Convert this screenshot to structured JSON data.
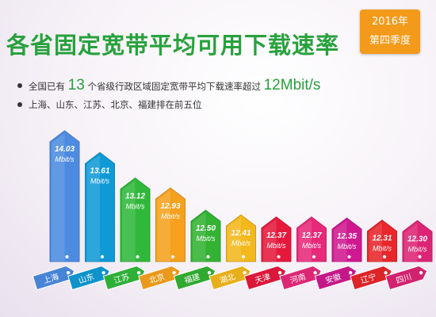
{
  "header": {
    "title": "各省固定宽带平均可用下载速率",
    "badge_line1": "2016年",
    "badge_line2": "第四季度"
  },
  "bullets": {
    "line1_prefix": "全国已有",
    "line1_count": "13",
    "line1_middle": "个省级行政区域固定宽带平均下载速率超过",
    "line1_threshold": "12Mbit/s",
    "line2": "上海、山东、江苏、北京、福建排在前五位"
  },
  "chart_data": {
    "type": "bar",
    "unit": "Mbit/s",
    "categories": [
      "上海",
      "山东",
      "江苏",
      "北京",
      "福建",
      "湖北",
      "天津",
      "河南",
      "安徽",
      "辽宁",
      "四川"
    ],
    "values": [
      14.03,
      13.61,
      13.12,
      12.93,
      12.5,
      12.41,
      12.37,
      12.37,
      12.35,
      12.31,
      12.3
    ],
    "colors": [
      "#4c8be0",
      "#0f9ad6",
      "#30b83b",
      "#f5a11d",
      "#33b233",
      "#f3b81c",
      "#e6193c",
      "#e8297a",
      "#d01890",
      "#e8262b",
      "#dd2474"
    ]
  }
}
